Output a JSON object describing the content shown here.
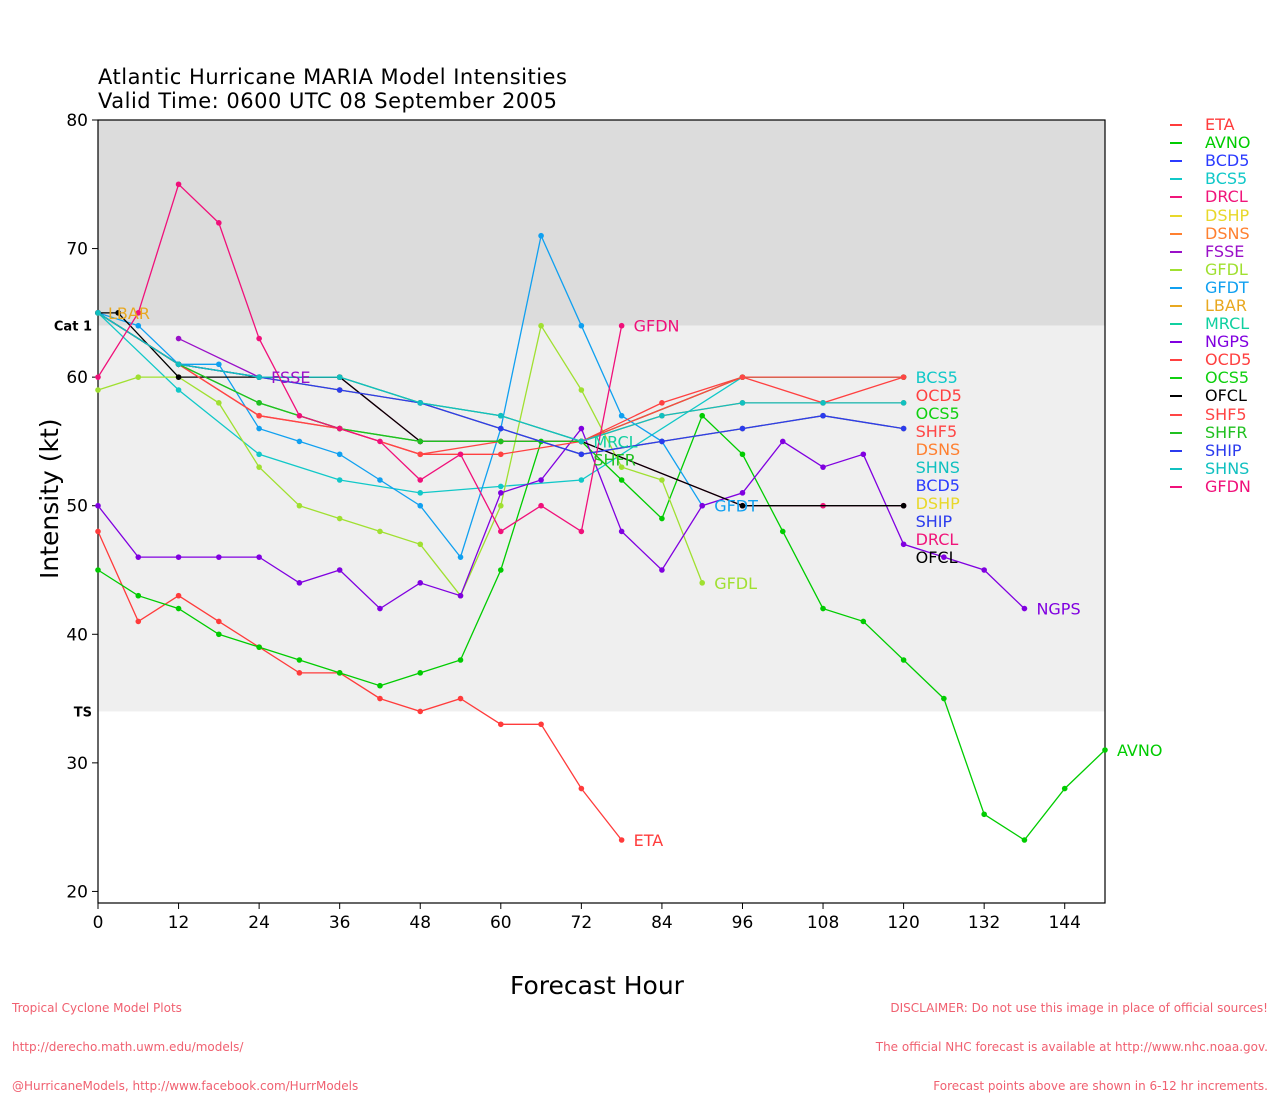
{
  "chart_data": {
    "type": "line",
    "title": "Atlantic Hurricane MARIA Model Intensities",
    "subtitle": "Valid Time: 0600 UTC 08 September 2005",
    "xlabel": "Forecast Hour",
    "ylabel": "Intensity (kt)",
    "xlim": [
      0,
      150
    ],
    "ylim": [
      19.1,
      80
    ],
    "xticks": [
      0,
      12,
      24,
      36,
      48,
      60,
      72,
      84,
      96,
      108,
      120,
      132,
      144
    ],
    "yticks": [
      20,
      30,
      40,
      50,
      60,
      70,
      80
    ],
    "bands": [
      {
        "label": "Cat 1",
        "from": 64,
        "to": 80,
        "color": "#dcdcdc"
      },
      {
        "label": "TS",
        "from": 34,
        "to": 64,
        "color": "#efefef"
      }
    ],
    "legend_position": "right",
    "series": [
      {
        "name": "ETA",
        "color": "#ff3b3b",
        "x": [
          0,
          6,
          12,
          18,
          24,
          30,
          36,
          42,
          48,
          54,
          60,
          66,
          72,
          78
        ],
        "y": [
          48,
          41,
          43,
          41,
          39,
          37,
          37,
          35,
          34,
          35,
          33,
          33,
          28,
          24
        ]
      },
      {
        "name": "AVNO",
        "color": "#00cc00",
        "x": [
          0,
          6,
          12,
          18,
          24,
          30,
          36,
          42,
          48,
          54,
          60,
          66,
          72,
          78,
          84,
          90,
          96,
          102,
          108,
          114,
          120,
          126,
          132,
          138,
          144,
          150
        ],
        "y": [
          45,
          43,
          42,
          40,
          39,
          38,
          37,
          36,
          37,
          38,
          45,
          55,
          55,
          52,
          49,
          57,
          54,
          48,
          42,
          41,
          38,
          35,
          26,
          24,
          28,
          31
        ]
      },
      {
        "name": "BCD5",
        "color": "#2b3bff",
        "x": [
          0,
          12,
          24,
          36,
          48,
          60,
          72,
          84,
          96,
          108,
          120
        ],
        "y": [
          65,
          61,
          60,
          59,
          58,
          56,
          54,
          55,
          56,
          57,
          56
        ]
      },
      {
        "name": "BCS5",
        "color": "#10c8c8",
        "x": [
          0,
          12,
          24,
          36,
          48,
          60,
          72,
          96,
          120
        ],
        "y": [
          65,
          59,
          54,
          52,
          51,
          51.5,
          52,
          60,
          60
        ]
      },
      {
        "name": "DRCL",
        "color": "#f0157a",
        "x": [
          0,
          12,
          24,
          36,
          48,
          72,
          96,
          108,
          120
        ],
        "y": [
          65,
          61,
          60,
          60,
          55,
          55,
          50,
          50,
          50
        ]
      },
      {
        "name": "DSHP",
        "color": "#e8d82a",
        "x": [
          0,
          12,
          24,
          36,
          48,
          60,
          72,
          84,
          96,
          108,
          120
        ],
        "y": [
          65,
          61,
          60,
          59,
          58,
          56,
          54,
          55,
          56,
          57,
          56
        ]
      },
      {
        "name": "DSNS",
        "color": "#ff8030",
        "x": [
          0,
          12,
          24,
          36,
          48,
          60,
          72,
          84,
          96,
          108,
          120
        ],
        "y": [
          65,
          61,
          60,
          60,
          58,
          57,
          55,
          57,
          58,
          58,
          58
        ]
      },
      {
        "name": "FSSE",
        "color": "#9a10c8",
        "x": [
          12,
          24
        ],
        "y": [
          63,
          60
        ]
      },
      {
        "name": "GFDL",
        "color": "#a0e030",
        "x": [
          0,
          6,
          12,
          18,
          24,
          30,
          36,
          42,
          48,
          54,
          60,
          66,
          72,
          78,
          84,
          90
        ],
        "y": [
          59,
          60,
          60,
          58,
          53,
          50,
          49,
          48,
          47,
          43,
          50,
          64,
          59,
          53,
          52,
          44
        ]
      },
      {
        "name": "GFDT",
        "color": "#10a0f0",
        "x": [
          0,
          6,
          12,
          18,
          24,
          30,
          36,
          42,
          48,
          54,
          60,
          66,
          72,
          78,
          84,
          90
        ],
        "y": [
          65,
          64,
          61,
          61,
          56,
          55,
          54,
          52,
          50,
          46,
          56,
          71,
          64,
          57,
          55,
          50
        ]
      },
      {
        "name": "LBAR",
        "color": "#e8a820",
        "x": [
          0
        ],
        "y": [
          65
        ]
      },
      {
        "name": "MRCL",
        "color": "#10d0a0",
        "x": [
          0,
          12,
          24,
          36,
          48,
          60,
          72
        ],
        "y": [
          65,
          61,
          60,
          60,
          58,
          57,
          55
        ]
      },
      {
        "name": "NGPS",
        "color": "#8000e0",
        "x": [
          0,
          6,
          12,
          18,
          24,
          30,
          36,
          42,
          48,
          54,
          60,
          66,
          72,
          78,
          84,
          90,
          96,
          102,
          108,
          114,
          120,
          126,
          132,
          138
        ],
        "y": [
          50,
          46,
          46,
          46,
          46,
          44,
          45,
          42,
          44,
          43,
          51,
          52,
          56,
          48,
          45,
          50,
          51,
          55,
          53,
          54,
          47,
          46,
          45,
          42
        ]
      },
      {
        "name": "OCD5",
        "color": "#ff4040",
        "x": [
          0,
          12,
          24,
          36,
          48,
          60,
          72,
          84,
          96,
          108,
          120
        ],
        "y": [
          65,
          61,
          57,
          56,
          54,
          54,
          55,
          58,
          60,
          58,
          60
        ]
      },
      {
        "name": "OCS5",
        "color": "#10d010",
        "x": [
          0,
          12,
          24,
          36,
          48,
          60,
          72,
          96,
          120
        ],
        "y": [
          65,
          61,
          58,
          56,
          55,
          55,
          55,
          60,
          60
        ]
      },
      {
        "name": "OFCL",
        "color": "#000000",
        "x": [
          0,
          3,
          12,
          24,
          36,
          48,
          72,
          96,
          120
        ],
        "y": [
          65,
          65,
          60,
          60,
          60,
          55,
          55,
          50,
          50
        ]
      },
      {
        "name": "SHF5",
        "color": "#ff4545",
        "x": [
          0,
          12,
          24,
          36,
          48,
          60,
          72,
          96,
          120
        ],
        "y": [
          65,
          61,
          57,
          56,
          54,
          55,
          55,
          60,
          60
        ]
      },
      {
        "name": "SHFR",
        "color": "#20c020",
        "x": [
          0,
          12,
          24,
          36,
          48,
          60,
          72
        ],
        "y": [
          65,
          61,
          58,
          56,
          55,
          55,
          55
        ]
      },
      {
        "name": "SHIP",
        "color": "#2b3bee",
        "x": [
          0,
          12,
          24,
          36,
          48,
          60,
          72,
          84,
          96,
          108,
          120
        ],
        "y": [
          65,
          61,
          60,
          59,
          58,
          56,
          54,
          55,
          56,
          57,
          56
        ]
      },
      {
        "name": "SHNS",
        "color": "#10c0c0",
        "x": [
          0,
          12,
          24,
          36,
          48,
          60,
          72,
          84,
          96,
          108,
          120
        ],
        "y": [
          65,
          61,
          60,
          60,
          58,
          57,
          55,
          57,
          58,
          58,
          58
        ]
      },
      {
        "name": "GFDN",
        "color": "#f0107a",
        "x": [
          0,
          6,
          12,
          18,
          24,
          30,
          36,
          42,
          48,
          54,
          60,
          66,
          72,
          78
        ],
        "y": [
          60,
          65,
          75,
          72,
          63,
          57,
          56,
          55,
          52,
          54,
          48,
          50,
          48,
          64
        ]
      }
    ]
  },
  "footer": {
    "left": [
      "Tropical Cyclone Model Plots",
      "http://derecho.math.uwm.edu/models/",
      "@HurricaneModels, http://www.facebook.com/HurrModels"
    ],
    "right": [
      "DISCLAIMER: Do not use this image in place of official sources!",
      "The official NHC forecast is available at http://www.nhc.noaa.gov.",
      "Forecast points above are shown in 6-12 hr increments."
    ]
  }
}
